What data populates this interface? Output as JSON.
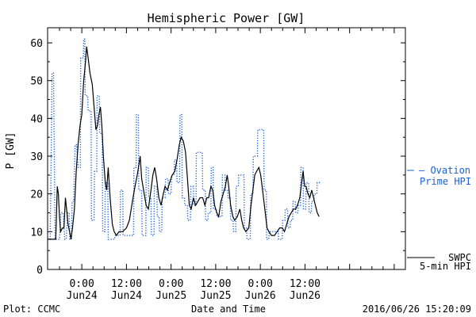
{
  "chart_data": {
    "type": "line",
    "title": "Hemispheric Power [GW]",
    "xlabel": "Date and Time",
    "ylabel": "P [GW]",
    "ylim": [
      0,
      64
    ],
    "yticks": [
      0,
      10,
      20,
      30,
      40,
      50,
      60
    ],
    "xlim_hours": [
      -9.2,
      87
    ],
    "xticks": [
      {
        "h": 0,
        "time": "0:00",
        "date": "Jun24"
      },
      {
        "h": 12,
        "time": "12:00",
        "date": "Jun24"
      },
      {
        "h": 24,
        "time": "0:00",
        "date": "Jun25"
      },
      {
        "h": 36,
        "time": "12:00",
        "date": "Jun25"
      },
      {
        "h": 48,
        "time": "0:00",
        "date": "Jun26"
      },
      {
        "h": 60,
        "time": "12:00",
        "date": "Jun26"
      }
    ],
    "grid": false,
    "legend_position": "right",
    "series": [
      {
        "name": "Ovation Prime HPI",
        "legend_lines": [
          "Ovation",
          "Prime HPI"
        ],
        "color": "#1a5fd6",
        "style": "dotted-step",
        "points": [
          [
            -9.2,
            8
          ],
          [
            -8.5,
            8
          ],
          [
            -8.0,
            52
          ],
          [
            -7.6,
            52
          ],
          [
            -7.2,
            8
          ],
          [
            -6.0,
            8
          ],
          [
            -5.6,
            15
          ],
          [
            -5.0,
            15
          ],
          [
            -4.6,
            8
          ],
          [
            -4.2,
            8
          ],
          [
            -3.8,
            15
          ],
          [
            -3.4,
            15
          ],
          [
            -3.2,
            8
          ],
          [
            -2.8,
            8
          ],
          [
            -2.6,
            18
          ],
          [
            -2.2,
            18
          ],
          [
            -1.8,
            33
          ],
          [
            -1.4,
            33
          ],
          [
            -1.0,
            27
          ],
          [
            -0.4,
            27
          ],
          [
            -0.3,
            56
          ],
          [
            0.4,
            56
          ],
          [
            0.5,
            61
          ],
          [
            0.8,
            61
          ],
          [
            0.9,
            46
          ],
          [
            1.6,
            46
          ],
          [
            1.7,
            42
          ],
          [
            2.5,
            42
          ],
          [
            2.6,
            13
          ],
          [
            3.3,
            13
          ],
          [
            3.4,
            26
          ],
          [
            4.0,
            26
          ],
          [
            4.1,
            46
          ],
          [
            4.7,
            46
          ],
          [
            4.8,
            36
          ],
          [
            5.5,
            36
          ],
          [
            5.6,
            10
          ],
          [
            6.2,
            10
          ],
          [
            6.3,
            23
          ],
          [
            7.0,
            23
          ],
          [
            7.1,
            8
          ],
          [
            8.8,
            8
          ],
          [
            9.0,
            9
          ],
          [
            10.3,
            9
          ],
          [
            10.4,
            21
          ],
          [
            11.0,
            21
          ],
          [
            11.1,
            9
          ],
          [
            13.9,
            9
          ],
          [
            14.0,
            27
          ],
          [
            14.6,
            27
          ],
          [
            14.7,
            41
          ],
          [
            15.2,
            41
          ],
          [
            15.3,
            21
          ],
          [
            16.1,
            21
          ],
          [
            16.2,
            9
          ],
          [
            17.2,
            9
          ],
          [
            17.3,
            27
          ],
          [
            17.9,
            27
          ],
          [
            18.0,
            19
          ],
          [
            18.6,
            19
          ],
          [
            18.7,
            9
          ],
          [
            19.4,
            9
          ],
          [
            19.5,
            22
          ],
          [
            20.2,
            22
          ],
          [
            20.3,
            14
          ],
          [
            20.8,
            14
          ],
          [
            20.9,
            10
          ],
          [
            21.5,
            10
          ],
          [
            21.6,
            19
          ],
          [
            22.4,
            19
          ],
          [
            22.5,
            24
          ],
          [
            23.2,
            24
          ],
          [
            23.3,
            20
          ],
          [
            24.0,
            20
          ],
          [
            24.1,
            25
          ],
          [
            24.8,
            25
          ],
          [
            24.9,
            29
          ],
          [
            25.5,
            29
          ],
          [
            25.6,
            23
          ],
          [
            26.3,
            23
          ],
          [
            26.4,
            41
          ],
          [
            26.9,
            41
          ],
          [
            27.0,
            19
          ],
          [
            27.6,
            19
          ],
          [
            27.7,
            17
          ],
          [
            28.4,
            17
          ],
          [
            28.5,
            13
          ],
          [
            29.2,
            13
          ],
          [
            29.3,
            22
          ],
          [
            30.0,
            22
          ],
          [
            30.1,
            17
          ],
          [
            30.7,
            17
          ],
          [
            30.8,
            31
          ],
          [
            31.4,
            31
          ],
          [
            31.5,
            31
          ],
          [
            32.4,
            31
          ],
          [
            32.5,
            21
          ],
          [
            33.2,
            21
          ],
          [
            33.3,
            13
          ],
          [
            33.9,
            13
          ],
          [
            34.0,
            15
          ],
          [
            34.7,
            15
          ],
          [
            34.8,
            27
          ],
          [
            35.3,
            27
          ],
          [
            35.4,
            16
          ],
          [
            36.2,
            16
          ],
          [
            36.3,
            14
          ],
          [
            36.9,
            14
          ],
          [
            37.0,
            14
          ],
          [
            37.7,
            14
          ],
          [
            37.8,
            25
          ],
          [
            38.5,
            25
          ],
          [
            38.6,
            21
          ],
          [
            39.2,
            21
          ],
          [
            39.3,
            19
          ],
          [
            39.9,
            19
          ],
          [
            40.0,
            13
          ],
          [
            40.7,
            13
          ],
          [
            40.8,
            10
          ],
          [
            41.4,
            10
          ],
          [
            41.5,
            22
          ],
          [
            42.1,
            22
          ],
          [
            42.2,
            25
          ],
          [
            42.9,
            25
          ],
          [
            43.0,
            25
          ],
          [
            43.6,
            25
          ],
          [
            43.7,
            11
          ],
          [
            44.3,
            11
          ],
          [
            44.4,
            8
          ],
          [
            45.3,
            8
          ],
          [
            45.4,
            20
          ],
          [
            46.0,
            20
          ],
          [
            46.1,
            30
          ],
          [
            46.7,
            30
          ],
          [
            46.8,
            30
          ],
          [
            47.2,
            30
          ],
          [
            47.3,
            37
          ],
          [
            48.9,
            37
          ],
          [
            49.0,
            21
          ],
          [
            49.6,
            21
          ],
          [
            49.7,
            8
          ],
          [
            50.3,
            8
          ],
          [
            50.4,
            10
          ],
          [
            51.0,
            10
          ],
          [
            51.1,
            10
          ],
          [
            52.8,
            10
          ],
          [
            52.9,
            8
          ],
          [
            53.9,
            8
          ],
          [
            54.0,
            13
          ],
          [
            54.6,
            13
          ],
          [
            54.7,
            16
          ],
          [
            55.3,
            16
          ],
          [
            55.4,
            11
          ],
          [
            56.0,
            11
          ],
          [
            56.1,
            13
          ],
          [
            56.7,
            13
          ],
          [
            56.8,
            18
          ],
          [
            57.4,
            18
          ],
          [
            57.5,
            15
          ],
          [
            58.1,
            15
          ],
          [
            58.2,
            17
          ],
          [
            58.8,
            17
          ],
          [
            58.9,
            27
          ],
          [
            59.5,
            27
          ],
          [
            59.6,
            16
          ],
          [
            60.2,
            16
          ],
          [
            60.3,
            23
          ],
          [
            61.0,
            23
          ],
          [
            61.1,
            15
          ],
          [
            61.7,
            15
          ],
          [
            61.8,
            18
          ],
          [
            62.4,
            18
          ],
          [
            62.5,
            20
          ],
          [
            63.2,
            20
          ],
          [
            63.3,
            23
          ],
          [
            64.2,
            23
          ]
        ]
      },
      {
        "name": "SWPC 5-min HPI",
        "legend_lines": [
          "SWPC",
          "5-min HPI"
        ],
        "color": "#000000",
        "style": "solid",
        "points": [
          [
            -9.2,
            8
          ],
          [
            -7.5,
            8
          ],
          [
            -7.0,
            8
          ],
          [
            -6.6,
            22
          ],
          [
            -6.3,
            20
          ],
          [
            -6.0,
            14
          ],
          [
            -5.7,
            10
          ],
          [
            -5.2,
            11
          ],
          [
            -4.8,
            11
          ],
          [
            -4.4,
            19
          ],
          [
            -4.1,
            16
          ],
          [
            -3.7,
            12
          ],
          [
            -3.3,
            10
          ],
          [
            -2.9,
            8
          ],
          [
            -2.5,
            11
          ],
          [
            -2.0,
            16
          ],
          [
            -1.5,
            26
          ],
          [
            -1.0,
            33
          ],
          [
            -0.5,
            38
          ],
          [
            0.0,
            41
          ],
          [
            0.5,
            50
          ],
          [
            1.0,
            55
          ],
          [
            1.3,
            59
          ],
          [
            1.7,
            56
          ],
          [
            2.2,
            52
          ],
          [
            2.8,
            49
          ],
          [
            3.3,
            43
          ],
          [
            3.8,
            37
          ],
          [
            4.2,
            38
          ],
          [
            4.6,
            41
          ],
          [
            5.0,
            43
          ],
          [
            5.4,
            38
          ],
          [
            5.8,
            30
          ],
          [
            6.3,
            23
          ],
          [
            6.7,
            21
          ],
          [
            7.1,
            27
          ],
          [
            7.6,
            19
          ],
          [
            8.2,
            12
          ],
          [
            8.7,
            10
          ],
          [
            9.3,
            9
          ],
          [
            10.0,
            10
          ],
          [
            11.0,
            10
          ],
          [
            12.0,
            11
          ],
          [
            12.8,
            13
          ],
          [
            13.6,
            18
          ],
          [
            14.3,
            22
          ],
          [
            14.9,
            25
          ],
          [
            15.4,
            28
          ],
          [
            15.7,
            30
          ],
          [
            16.1,
            24
          ],
          [
            16.6,
            21
          ],
          [
            17.3,
            17
          ],
          [
            17.9,
            16
          ],
          [
            18.6,
            21
          ],
          [
            19.1,
            25
          ],
          [
            19.6,
            27
          ],
          [
            20.1,
            24
          ],
          [
            20.7,
            19
          ],
          [
            21.3,
            17
          ],
          [
            21.9,
            20
          ],
          [
            22.4,
            22
          ],
          [
            23.0,
            21
          ],
          [
            23.6,
            23
          ],
          [
            24.3,
            25
          ],
          [
            25.0,
            26
          ],
          [
            25.6,
            29
          ],
          [
            26.2,
            33
          ],
          [
            26.7,
            35
          ],
          [
            27.3,
            34
          ],
          [
            27.9,
            31
          ],
          [
            28.4,
            24
          ],
          [
            28.9,
            17
          ],
          [
            29.4,
            16
          ],
          [
            30.0,
            19
          ],
          [
            30.6,
            17
          ],
          [
            31.2,
            18
          ],
          [
            31.8,
            19
          ],
          [
            32.5,
            19
          ],
          [
            33.1,
            17
          ],
          [
            33.6,
            19
          ],
          [
            34.1,
            19
          ],
          [
            34.7,
            22
          ],
          [
            35.2,
            21
          ],
          [
            35.7,
            17
          ],
          [
            36.3,
            15
          ],
          [
            36.8,
            14
          ],
          [
            37.4,
            18
          ],
          [
            38.0,
            20
          ],
          [
            38.6,
            22
          ],
          [
            39.1,
            25
          ],
          [
            39.5,
            22
          ],
          [
            40.0,
            17
          ],
          [
            40.6,
            14
          ],
          [
            41.1,
            13
          ],
          [
            41.8,
            14
          ],
          [
            42.5,
            16
          ],
          [
            43.0,
            13
          ],
          [
            43.5,
            11
          ],
          [
            44.1,
            10
          ],
          [
            44.9,
            11
          ],
          [
            45.5,
            17
          ],
          [
            46.0,
            21
          ],
          [
            46.5,
            25
          ],
          [
            47.0,
            26
          ],
          [
            47.6,
            27
          ],
          [
            48.1,
            25
          ],
          [
            48.6,
            21
          ],
          [
            49.2,
            16
          ],
          [
            49.8,
            11
          ],
          [
            50.3,
            10
          ],
          [
            51.0,
            9
          ],
          [
            51.8,
            9
          ],
          [
            52.5,
            10
          ],
          [
            53.2,
            11
          ],
          [
            53.9,
            11
          ],
          [
            54.5,
            10
          ],
          [
            55.1,
            12
          ],
          [
            55.7,
            14
          ],
          [
            56.3,
            15
          ],
          [
            56.9,
            16
          ],
          [
            57.5,
            16
          ],
          [
            58.0,
            17
          ],
          [
            58.6,
            19
          ],
          [
            59.1,
            23
          ],
          [
            59.5,
            26
          ],
          [
            59.9,
            22
          ],
          [
            60.3,
            22
          ],
          [
            60.8,
            20
          ],
          [
            61.3,
            19
          ],
          [
            61.8,
            21
          ],
          [
            62.3,
            19
          ],
          [
            62.8,
            17
          ],
          [
            63.3,
            15
          ],
          [
            63.8,
            14
          ]
        ]
      }
    ]
  },
  "footer": {
    "plot_credit": "Plot: CCMC",
    "timestamp": "2016/06/26 15:20:09"
  }
}
